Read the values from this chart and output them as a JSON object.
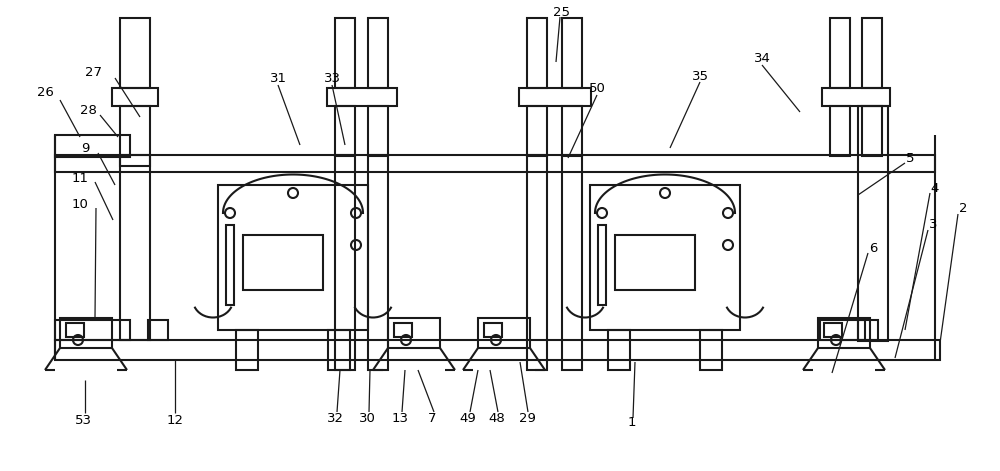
{
  "bg_color": "#ffffff",
  "line_color": "#1a1a1a",
  "line_width": 1.5,
  "fig_width": 10.0,
  "fig_height": 4.71
}
